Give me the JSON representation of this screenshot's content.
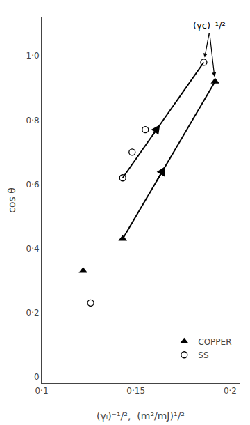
{
  "chart_data": {
    "type": "scatter",
    "xlabel": "(γₗ)⁻¹/²,  (m²/mJ)¹/²",
    "ylabel": "cos θ",
    "series": [
      {
        "type": "line",
        "color": "#000000",
        "marker": "mid-arrow",
        "x": [
          0.143,
          0.192
        ],
        "values": [
          0.43,
          0.92
        ]
      },
      {
        "type": "line",
        "color": "#000000",
        "marker": "mid-arrow",
        "x": [
          0.143,
          0.186
        ],
        "values": [
          0.62,
          0.98
        ]
      },
      {
        "name": "COPPER",
        "type": "scatter",
        "marker": "triangle-up",
        "color": "#000000",
        "x": [
          0.122,
          0.143,
          0.192
        ],
        "values": [
          0.33,
          0.43,
          0.92
        ]
      },
      {
        "name": "SS",
        "type": "scatter",
        "marker": "circle-open",
        "color": "#000000",
        "x": [
          0.126,
          0.143,
          0.148,
          0.155,
          0.186
        ],
        "values": [
          0.23,
          0.62,
          0.7,
          0.77,
          0.98
        ]
      }
    ],
    "annotations": [
      {
        "text": "(γᴄ)⁻¹/²",
        "x": 0.189,
        "y": 1.075,
        "points": [
          {
            "x": 0.186,
            "y": 0.98
          },
          {
            "x": 0.192,
            "y": 0.92
          }
        ]
      }
    ],
    "xlim": [
      0.1,
      0.205
    ],
    "ylim": [
      -0.02,
      1.12
    ],
    "xticks": [
      {
        "value": 0.1,
        "label": "0·1"
      },
      {
        "value": 0.15,
        "label": "0·15"
      },
      {
        "value": 0.2,
        "label": "0·2"
      }
    ],
    "yticks": [
      0,
      {
        "value": 0.2,
        "label": "0·2"
      },
      {
        "value": 0.4,
        "label": "0·4"
      },
      {
        "value": 0.6,
        "label": "0·6"
      },
      {
        "value": 0.8,
        "label": "0·8"
      },
      {
        "value": 1.0,
        "label": "1·0"
      }
    ],
    "grid": false,
    "legend": "lower right"
  }
}
